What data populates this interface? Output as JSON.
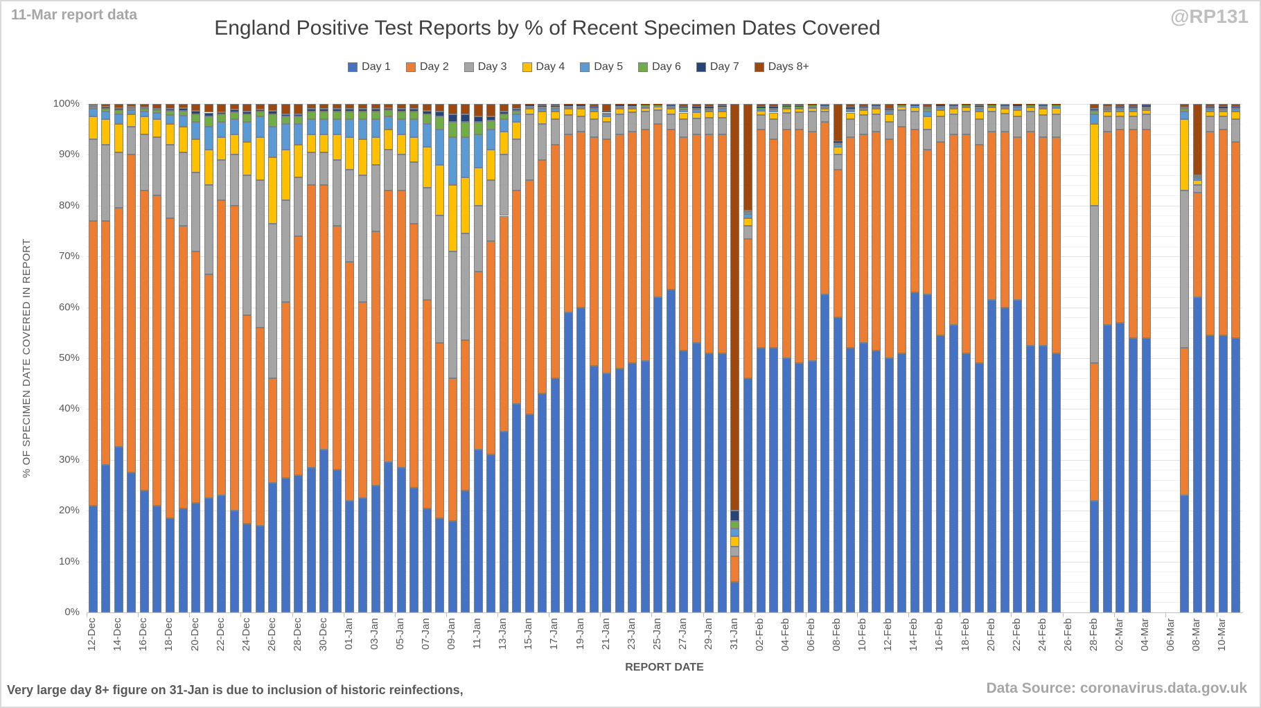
{
  "header": {
    "report_note": "11-Mar report data",
    "watermark": "@RP131",
    "title": "England Positive Test Reports by % of Recent Specimen Dates Covered"
  },
  "footer": {
    "note": "Very large day 8+ figure on 31-Jan is due to inclusion of historic reinfections,",
    "source": "Data Source: coronavirus.data.gov.uk"
  },
  "colors": {
    "axis_text": "#595959",
    "title_text": "#404040",
    "muted_text": "#a6a6a6",
    "watermark_text": "#bfbfbf",
    "segment_border": "#7f7f7f",
    "axis_line": "#bfbfbf",
    "gridline_major": "#e2e2e2",
    "gridline_minor": "#f0f0f0"
  },
  "chart_data": {
    "type": "bar",
    "stacked": true,
    "stack_unit": "percent_of_total",
    "title": "England Positive Test Reports by % of Recent Specimen Dates Covered",
    "xlabel": "REPORT DATE",
    "ylabel": "% OF SPECIMEN DATE COVERED IN REPORT",
    "ylim": [
      0,
      100
    ],
    "ytick_major_interval": 10,
    "ytick_minor_interval": 2,
    "ytick_labels": [
      "0%",
      "10%",
      "20%",
      "30%",
      "40%",
      "50%",
      "60%",
      "70%",
      "80%",
      "90%",
      "100%"
    ],
    "xlabel_every_n_days": 2,
    "legend_position": "top",
    "grid": true,
    "missing_dates": [
      "26-Feb",
      "27-Feb",
      "05-Mar",
      "06-Mar"
    ],
    "series_names": [
      "Day 1",
      "Day 2",
      "Day 3",
      "Day 4",
      "Day 5",
      "Day 6",
      "Day 7",
      "Days 8+"
    ],
    "series_colors": [
      "#4472c4",
      "#ed7d31",
      "#a5a5a5",
      "#ffc000",
      "#5b9bd5",
      "#70ad47",
      "#264478",
      "#9e480e"
    ],
    "bars": [
      {
        "date": "12-Dec",
        "values": [
          21,
          56,
          16,
          4.5,
          1.5,
          0.4,
          0.3,
          0.3
        ]
      },
      {
        "date": "13-Dec",
        "values": [
          29,
          48,
          15,
          5,
          1.5,
          0.6,
          0.3,
          0.6
        ]
      },
      {
        "date": "14-Dec",
        "values": [
          32.5,
          47,
          11,
          5.5,
          2,
          0.8,
          0.4,
          0.8
        ]
      },
      {
        "date": "15-Dec",
        "values": [
          27.5,
          62.5,
          5.5,
          2.5,
          0.8,
          0.4,
          0.3,
          0.5
        ]
      },
      {
        "date": "16-Dec",
        "values": [
          24,
          59,
          11,
          3.5,
          1,
          0.5,
          0.3,
          0.7
        ]
      },
      {
        "date": "17-Dec",
        "values": [
          21,
          61,
          11.5,
          3.5,
          1.2,
          0.6,
          0.3,
          0.9
        ]
      },
      {
        "date": "18-Dec",
        "values": [
          18.5,
          59,
          14.5,
          4,
          1.8,
          0.8,
          0.4,
          1
        ]
      },
      {
        "date": "19-Dec",
        "values": [
          20.5,
          55.5,
          14.5,
          5,
          2.2,
          1,
          0.5,
          0.8
        ]
      },
      {
        "date": "20-Dec",
        "values": [
          21.5,
          49.5,
          15.5,
          6.5,
          3.5,
          1.5,
          0.7,
          1.3
        ]
      },
      {
        "date": "21-Dec",
        "values": [
          22.5,
          44,
          17.5,
          7,
          4.5,
          2,
          0.8,
          1.7
        ]
      },
      {
        "date": "22-Dec",
        "values": [
          23,
          58,
          8,
          4.5,
          3,
          1.5,
          0.4,
          1.6
        ]
      },
      {
        "date": "23-Dec",
        "values": [
          20,
          60,
          10,
          4,
          3,
          1.4,
          0.5,
          1.1
        ]
      },
      {
        "date": "24-Dec",
        "values": [
          17.5,
          41,
          27.5,
          6.5,
          4,
          1.5,
          0.5,
          1.5
        ]
      },
      {
        "date": "25-Dec",
        "values": [
          17,
          39,
          29,
          8.5,
          4,
          1,
          0.4,
          1.1
        ]
      },
      {
        "date": "26-Dec",
        "values": [
          25.5,
          20.5,
          30.5,
          13,
          6,
          2.5,
          0.6,
          1.4
        ]
      },
      {
        "date": "27-Dec",
        "values": [
          26.5,
          34.5,
          20,
          10,
          5,
          1.6,
          0.4,
          2
        ]
      },
      {
        "date": "28-Dec",
        "values": [
          27,
          47,
          11.5,
          6.5,
          4,
          1.5,
          0.5,
          2
        ]
      },
      {
        "date": "29-Dec",
        "values": [
          28.5,
          55.5,
          6.5,
          3.5,
          3,
          1.5,
          0.5,
          1
        ]
      },
      {
        "date": "30-Dec",
        "values": [
          32,
          52,
          6.5,
          3.5,
          3,
          1.5,
          0.5,
          1
        ]
      },
      {
        "date": "31-Dec",
        "values": [
          28,
          48,
          13,
          5,
          3,
          1.5,
          0.5,
          1
        ]
      },
      {
        "date": "01-Jan",
        "values": [
          22,
          47,
          18,
          6.5,
          3.5,
          1.5,
          0.5,
          1
        ]
      },
      {
        "date": "02-Jan",
        "values": [
          22.5,
          38.5,
          25,
          7,
          4,
          1.5,
          0.5,
          1
        ]
      },
      {
        "date": "03-Jan",
        "values": [
          25,
          50,
          13,
          5.5,
          3.5,
          1.5,
          0.5,
          1
        ]
      },
      {
        "date": "04-Jan",
        "values": [
          29.5,
          53.5,
          8,
          4,
          2.5,
          1.3,
          0.4,
          0.8
        ]
      },
      {
        "date": "05-Jan",
        "values": [
          28.5,
          54.5,
          7,
          4,
          3,
          1.5,
          0.5,
          1
        ]
      },
      {
        "date": "06-Jan",
        "values": [
          24.5,
          52,
          12,
          5,
          3.5,
          1.5,
          0.5,
          1
        ]
      },
      {
        "date": "07-Jan",
        "values": [
          20.5,
          41,
          22,
          8,
          4.5,
          2,
          0.7,
          1.3
        ]
      },
      {
        "date": "08-Jan",
        "values": [
          18.5,
          34.5,
          25,
          10,
          7,
          2.5,
          1,
          1.5
        ]
      },
      {
        "date": "09-Jan",
        "values": [
          18,
          28,
          25,
          13,
          9.5,
          3,
          1.5,
          2
        ]
      },
      {
        "date": "10-Jan",
        "values": [
          24,
          29.5,
          21,
          11,
          8,
          3,
          1.5,
          2
        ]
      },
      {
        "date": "11-Jan",
        "values": [
          32,
          35,
          13,
          7.5,
          6.5,
          2.5,
          1,
          2.5
        ]
      },
      {
        "date": "12-Jan",
        "values": [
          31,
          42,
          12,
          6,
          4,
          1.8,
          0.7,
          2.5
        ]
      },
      {
        "date": "13-Jan",
        "values": [
          35.5,
          42.5,
          12,
          4.5,
          2.5,
          1,
          0.5,
          1.5
        ]
      },
      {
        "date": "14-Jan",
        "values": [
          41,
          42,
          10,
          3.5,
          1.5,
          0.6,
          0.4,
          1
        ]
      },
      {
        "date": "15-Jan",
        "values": [
          39,
          46,
          13,
          1,
          0.4,
          0.2,
          0.2,
          0.2
        ]
      },
      {
        "date": "16-Jan",
        "values": [
          43,
          46,
          7,
          2.5,
          0.6,
          0.3,
          0.2,
          0.4
        ]
      },
      {
        "date": "17-Jan",
        "values": [
          46,
          46,
          5,
          1.5,
          0.6,
          0.3,
          0.2,
          0.4
        ]
      },
      {
        "date": "18-Jan",
        "values": [
          59,
          35,
          3.8,
          1.2,
          0.4,
          0.2,
          0.2,
          0.2
        ]
      },
      {
        "date": "19-Jan",
        "values": [
          60,
          34.5,
          3,
          1.5,
          0.4,
          0.2,
          0.2,
          0.2
        ]
      },
      {
        "date": "20-Jan",
        "values": [
          48.5,
          45,
          3.5,
          1.5,
          0.5,
          0.3,
          0.2,
          0.5
        ]
      },
      {
        "date": "21-Jan",
        "values": [
          47,
          46,
          3.5,
          1,
          0.5,
          0.3,
          0.2,
          1.5
        ]
      },
      {
        "date": "22-Jan",
        "values": [
          48,
          46,
          4,
          1,
          0.4,
          0.2,
          0.2,
          0.2
        ]
      },
      {
        "date": "23-Jan",
        "values": [
          49,
          45.5,
          3.8,
          0.8,
          0.3,
          0.2,
          0.2,
          0.2
        ]
      },
      {
        "date": "24-Jan",
        "values": [
          49.5,
          45.5,
          3.5,
          0.7,
          0.3,
          0.2,
          0.1,
          0.2
        ]
      },
      {
        "date": "25-Jan",
        "values": [
          62,
          34,
          2.8,
          0.6,
          0.2,
          0.1,
          0.1,
          0.2
        ]
      },
      {
        "date": "26-Jan",
        "values": [
          63.5,
          31.5,
          3,
          1,
          0.4,
          0.2,
          0.1,
          0.3
        ]
      },
      {
        "date": "27-Jan",
        "values": [
          51.5,
          42,
          3.5,
          1.3,
          0.6,
          0.4,
          0.2,
          0.5
        ]
      },
      {
        "date": "28-Jan",
        "values": [
          53,
          41,
          3.2,
          1.2,
          0.5,
          0.3,
          0.2,
          0.6
        ]
      },
      {
        "date": "29-Jan",
        "values": [
          51,
          43,
          3.3,
          1.2,
          0.4,
          0.3,
          0.2,
          0.6
        ]
      },
      {
        "date": "30-Jan",
        "values": [
          51,
          43,
          3.3,
          1.2,
          0.6,
          0.3,
          0.2,
          0.4
        ]
      },
      {
        "date": "31-Jan",
        "values": [
          6,
          5,
          2,
          2,
          1.5,
          1.5,
          2,
          80
        ]
      },
      {
        "date": "01-Feb",
        "values": [
          46,
          27.5,
          2.5,
          1.5,
          0.8,
          0.4,
          0.3,
          21
        ]
      },
      {
        "date": "02-Feb",
        "values": [
          52,
          43,
          2.8,
          0.8,
          0.4,
          0.2,
          0.2,
          0.6
        ]
      },
      {
        "date": "03-Feb",
        "values": [
          52,
          41,
          4,
          1.3,
          0.6,
          0.3,
          0.2,
          0.6
        ]
      },
      {
        "date": "04-Feb",
        "values": [
          50,
          45,
          3.2,
          0.8,
          0.3,
          0.2,
          0.1,
          0.4
        ]
      },
      {
        "date": "05-Feb",
        "values": [
          49,
          46,
          3.3,
          0.7,
          0.3,
          0.2,
          0.1,
          0.4
        ]
      },
      {
        "date": "06-Feb",
        "values": [
          49.5,
          45,
          4,
          0.7,
          0.3,
          0.2,
          0.1,
          0.2
        ]
      },
      {
        "date": "07-Feb",
        "values": [
          62.5,
          34,
          2,
          0.6,
          0.3,
          0.2,
          0.1,
          0.3
        ]
      },
      {
        "date": "08-Feb",
        "values": [
          58,
          29,
          3,
          1.5,
          0.6,
          0.3,
          0.2,
          7.4
        ]
      },
      {
        "date": "09-Feb",
        "values": [
          52,
          41.5,
          3.5,
          1.3,
          0.5,
          0.3,
          0.2,
          0.7
        ]
      },
      {
        "date": "10-Feb",
        "values": [
          53,
          41,
          3.8,
          1,
          0.4,
          0.2,
          0.1,
          0.5
        ]
      },
      {
        "date": "11-Feb",
        "values": [
          51.5,
          43,
          3.5,
          1,
          0.4,
          0.2,
          0.1,
          0.3
        ]
      },
      {
        "date": "12-Feb",
        "values": [
          50,
          43,
          3.5,
          1.5,
          0.6,
          0.3,
          0.2,
          0.9
        ]
      },
      {
        "date": "13-Feb",
        "values": [
          51,
          44.5,
          3.3,
          0.6,
          0.2,
          0.1,
          0.1,
          0.2
        ]
      },
      {
        "date": "14-Feb",
        "values": [
          63,
          32,
          3.5,
          0.8,
          0.2,
          0.1,
          0.1,
          0.3
        ]
      },
      {
        "date": "15-Feb",
        "values": [
          62.5,
          28.5,
          4,
          2.5,
          1,
          0.5,
          0.3,
          0.7
        ]
      },
      {
        "date": "16-Feb",
        "values": [
          54.5,
          38,
          5,
          1.3,
          0.5,
          0.3,
          0.2,
          0.2
        ]
      },
      {
        "date": "17-Feb",
        "values": [
          56.5,
          37.5,
          4,
          1,
          0.4,
          0.2,
          0.1,
          0.3
        ]
      },
      {
        "date": "18-Feb",
        "values": [
          51,
          43,
          4.5,
          0.8,
          0.3,
          0.2,
          0.1,
          0.1
        ]
      },
      {
        "date": "19-Feb",
        "values": [
          49,
          43,
          5,
          1.5,
          0.6,
          0.3,
          0.2,
          0.4
        ]
      },
      {
        "date": "20-Feb",
        "values": [
          61.5,
          33,
          4,
          0.8,
          0.3,
          0.2,
          0.1,
          0.1
        ]
      },
      {
        "date": "21-Feb",
        "values": [
          60,
          34.5,
          3.6,
          0.9,
          0.4,
          0.2,
          0.1,
          0.3
        ]
      },
      {
        "date": "22-Feb",
        "values": [
          61.5,
          32,
          4,
          1.3,
          0.5,
          0.3,
          0.2,
          0.2
        ]
      },
      {
        "date": "23-Feb",
        "values": [
          52.5,
          42,
          4,
          0.8,
          0.3,
          0.2,
          0.1,
          0.1
        ]
      },
      {
        "date": "24-Feb",
        "values": [
          52.5,
          41,
          4.3,
          1.2,
          0.4,
          0.2,
          0.1,
          0.3
        ]
      },
      {
        "date": "25-Feb",
        "values": [
          51,
          42.5,
          4.5,
          1.2,
          0.4,
          0.2,
          0.1,
          0.1
        ]
      },
      {
        "date": "26-Feb",
        "values": null
      },
      {
        "date": "27-Feb",
        "values": null
      },
      {
        "date": "28-Feb",
        "values": [
          22,
          27,
          31,
          16,
          2,
          0.6,
          0.4,
          1
        ]
      },
      {
        "date": "01-Mar",
        "values": [
          56.5,
          38,
          3,
          1,
          0.4,
          0.3,
          0.3,
          0.5
        ]
      },
      {
        "date": "02-Mar",
        "values": [
          57,
          38,
          2.5,
          1,
          0.5,
          0.3,
          0.2,
          0.5
        ]
      },
      {
        "date": "03-Mar",
        "values": [
          54,
          41,
          2.5,
          1,
          0.5,
          0.3,
          0.2,
          0.5
        ]
      },
      {
        "date": "04-Mar",
        "values": [
          54,
          41,
          3,
          0.8,
          0.4,
          0.3,
          0.2,
          0.3
        ]
      },
      {
        "date": "05-Mar",
        "values": null
      },
      {
        "date": "06-Mar",
        "values": null
      },
      {
        "date": "07-Mar",
        "values": [
          23,
          29,
          31,
          14,
          1.5,
          0.5,
          0.3,
          0.7
        ]
      },
      {
        "date": "08-Mar",
        "values": [
          62,
          20.5,
          1.5,
          1,
          0.4,
          0.3,
          0.3,
          14
        ]
      },
      {
        "date": "09-Mar",
        "values": [
          54.5,
          40,
          3,
          1,
          0.5,
          0.3,
          0.2,
          0.5
        ]
      },
      {
        "date": "10-Mar",
        "values": [
          54.5,
          40.5,
          2.5,
          1,
          0.4,
          0.3,
          0.2,
          0.6
        ]
      },
      {
        "date": "11-Mar",
        "values": [
          54,
          38.5,
          4.5,
          1.5,
          0.5,
          0.3,
          0.2,
          0.5
        ]
      }
    ]
  }
}
